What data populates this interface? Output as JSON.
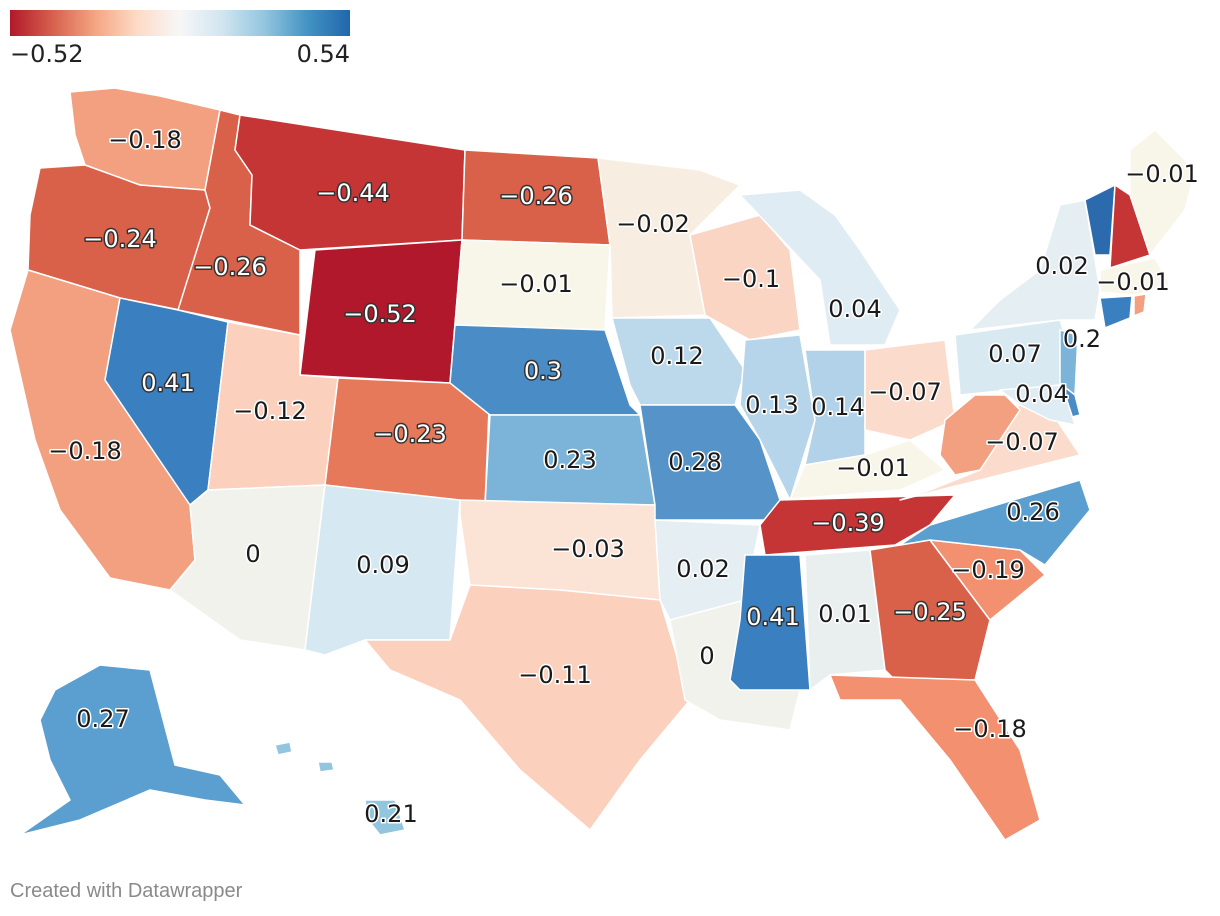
{
  "legend": {
    "min_label": "−0.52",
    "max_label": "0.54",
    "gradient": [
      "#b2182b",
      "#d6604d",
      "#f4a582",
      "#fddbc7",
      "#f7f7f7",
      "#d1e5f0",
      "#92c5de",
      "#4393c3",
      "#2166ac"
    ]
  },
  "credit": "Created with Datawrapper",
  "colors": {
    "red_strong": "#b2182b",
    "red": "#cc3b36",
    "red_mid": "#d9614a",
    "orange": "#e7795b",
    "salmon": "#f2a07f",
    "peach": "#fbd0bd",
    "cream": "#f8ede1",
    "neutral": "#f1f2ec",
    "ice": "#e4eef3",
    "light_blue": "#cfe3f0",
    "sky": "#b6d5ea",
    "mid_blue": "#78b1d8",
    "blue": "#5a9fcf",
    "blue_dark": "#3a7fbf",
    "blue_strong": "#2a6aad"
  },
  "states": [
    {
      "id": "WA",
      "value": "−0.18",
      "fill": "#f2a07f"
    },
    {
      "id": "OR",
      "value": "−0.24",
      "fill": "#d9614a"
    },
    {
      "id": "CA",
      "value": "−0.18",
      "fill": "#f2a07f"
    },
    {
      "id": "ID",
      "value": "−0.26",
      "fill": "#d9614a"
    },
    {
      "id": "NV",
      "value": "0.41",
      "fill": "#3a7fbf"
    },
    {
      "id": "MT",
      "value": "−0.44",
      "fill": "#c53535"
    },
    {
      "id": "WY",
      "value": "−0.52",
      "fill": "#b2182b"
    },
    {
      "id": "UT",
      "value": "−0.12",
      "fill": "#fbd0bd"
    },
    {
      "id": "AZ",
      "value": "0",
      "fill": "#f1f2ec"
    },
    {
      "id": "CO",
      "value": "−0.23",
      "fill": "#e7795b"
    },
    {
      "id": "NM",
      "value": "0.09",
      "fill": "#d6e8f2"
    },
    {
      "id": "ND",
      "value": "−0.26",
      "fill": "#d9614a"
    },
    {
      "id": "SD",
      "value": "−0.01",
      "fill": "#f8f5e9"
    },
    {
      "id": "NE",
      "value": "0.3",
      "fill": "#4a8cc6"
    },
    {
      "id": "KS",
      "value": "0.23",
      "fill": "#7cb4d9"
    },
    {
      "id": "OK",
      "value": "−0.03",
      "fill": "#fbe3d6"
    },
    {
      "id": "TX",
      "value": "−0.11",
      "fill": "#fbd0bd"
    },
    {
      "id": "MN",
      "value": "−0.02",
      "fill": "#f8ede1"
    },
    {
      "id": "IA",
      "value": "0.12",
      "fill": "#bcd8eb"
    },
    {
      "id": "MO",
      "value": "0.28",
      "fill": "#5593c9"
    },
    {
      "id": "AR",
      "value": "0.02",
      "fill": "#e4eef3"
    },
    {
      "id": "LA",
      "value": "0",
      "fill": "#f1f2ec"
    },
    {
      "id": "WI",
      "value": "−0.1",
      "fill": "#fbd5c4"
    },
    {
      "id": "IL",
      "value": "0.13",
      "fill": "#b6d5ea"
    },
    {
      "id": "MI",
      "value": "0.04",
      "fill": "#e0ecf3"
    },
    {
      "id": "IN",
      "value": "0.14",
      "fill": "#b1d2e8"
    },
    {
      "id": "OH",
      "value": "−0.07",
      "fill": "#fbdccc"
    },
    {
      "id": "KY",
      "value": "−0.01",
      "fill": "#f8f5e9"
    },
    {
      "id": "TN",
      "value": "−0.39",
      "fill": "#c53535"
    },
    {
      "id": "MS",
      "value": "0.41",
      "fill": "#3a7fbf"
    },
    {
      "id": "AL",
      "value": "0.01",
      "fill": "#e9efef"
    },
    {
      "id": "GA",
      "value": "−0.25",
      "fill": "#d9614a"
    },
    {
      "id": "FL",
      "value": "−0.18",
      "fill": "#f2906f"
    },
    {
      "id": "SC",
      "value": "−0.19",
      "fill": "#f2906f"
    },
    {
      "id": "NC",
      "value": "0.26",
      "fill": "#5a9fcf"
    },
    {
      "id": "VA",
      "value": "−0.07",
      "fill": "#fbdccc"
    },
    {
      "id": "WV",
      "value": "",
      "fill": "#f2a07f"
    },
    {
      "id": "PA",
      "value": "0.07",
      "fill": "#d9e9f2"
    },
    {
      "id": "NY",
      "value": "0.02",
      "fill": "#e4eef3"
    },
    {
      "id": "NJ",
      "value": "0.2",
      "fill": "#7cb4d9"
    },
    {
      "id": "DE",
      "value": "",
      "fill": "#4a8cc6"
    },
    {
      "id": "MD",
      "value": "0.04",
      "fill": "#e0ecf3"
    },
    {
      "id": "VT",
      "value": "",
      "fill": "#2a6aad"
    },
    {
      "id": "NH",
      "value": "",
      "fill": "#c53535"
    },
    {
      "id": "ME",
      "value": "−0.01",
      "fill": "#f8f5e9"
    },
    {
      "id": "MA",
      "value": "−0.01",
      "fill": "#f8f5e9"
    },
    {
      "id": "CT",
      "value": "",
      "fill": "#3a7fbf"
    },
    {
      "id": "RI",
      "value": "",
      "fill": "#f2a07f"
    },
    {
      "id": "AK",
      "value": "0.27",
      "fill": "#5a9fcf"
    },
    {
      "id": "HI",
      "value": "0.21",
      "fill": "#92c5de"
    }
  ]
}
